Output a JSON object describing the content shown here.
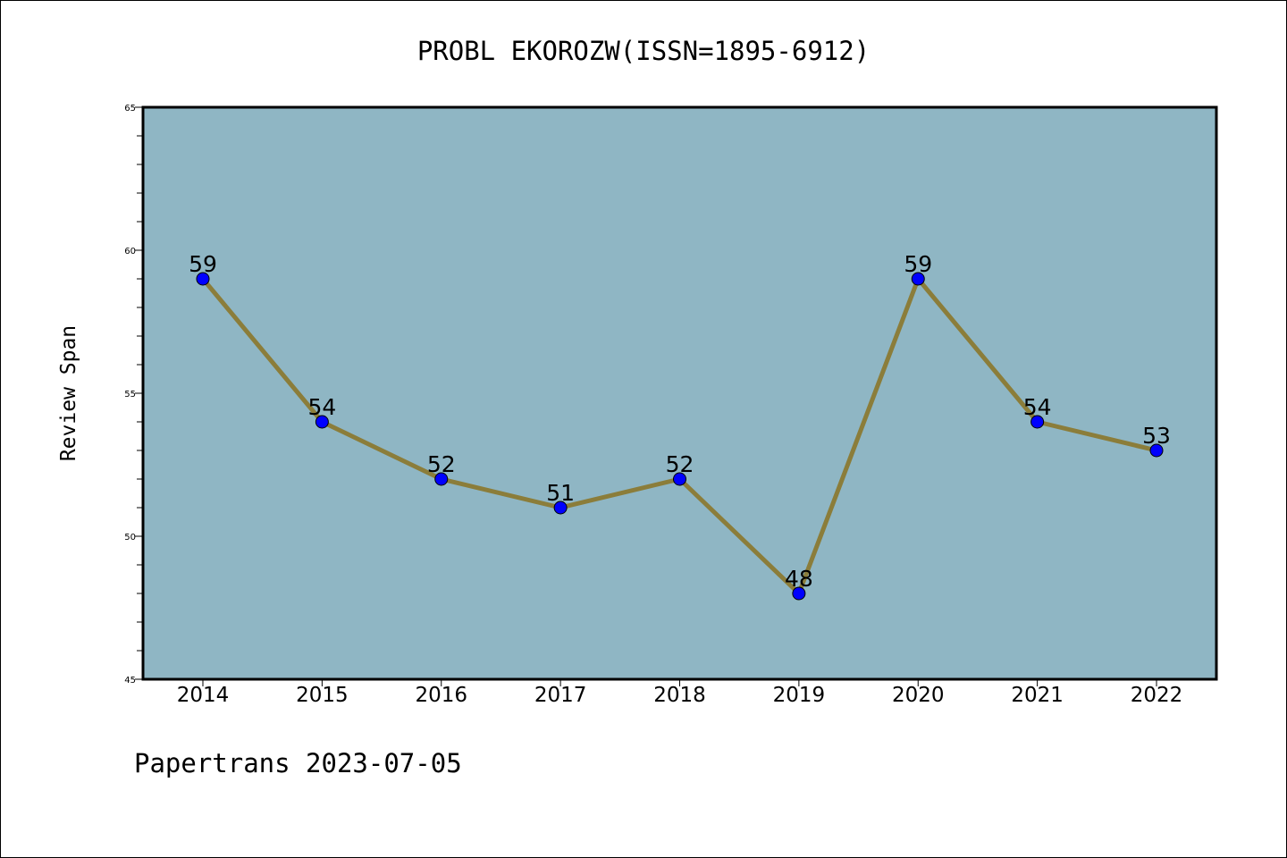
{
  "chart_data": {
    "type": "line",
    "title": "PROBL EKOROZW(ISSN=1895-6912)",
    "xlabel": "",
    "ylabel": "Review Span",
    "categories": [
      "2014",
      "2015",
      "2016",
      "2017",
      "2018",
      "2019",
      "2020",
      "2021",
      "2022"
    ],
    "series": [
      {
        "values": [
          59,
          54,
          52,
          51,
          52,
          48,
          59,
          54,
          53
        ]
      }
    ],
    "ylim": [
      45,
      65
    ],
    "yticks": [
      45,
      50,
      55,
      60,
      65
    ],
    "yticks_minor_step": 1,
    "grid": false,
    "legend": "none",
    "colors": {
      "plot_background": "#8fb6c4",
      "line": "#8b7d3a",
      "marker": "#0000ff",
      "axis": "#000000"
    }
  },
  "footer": "Papertrans 2023-07-05"
}
